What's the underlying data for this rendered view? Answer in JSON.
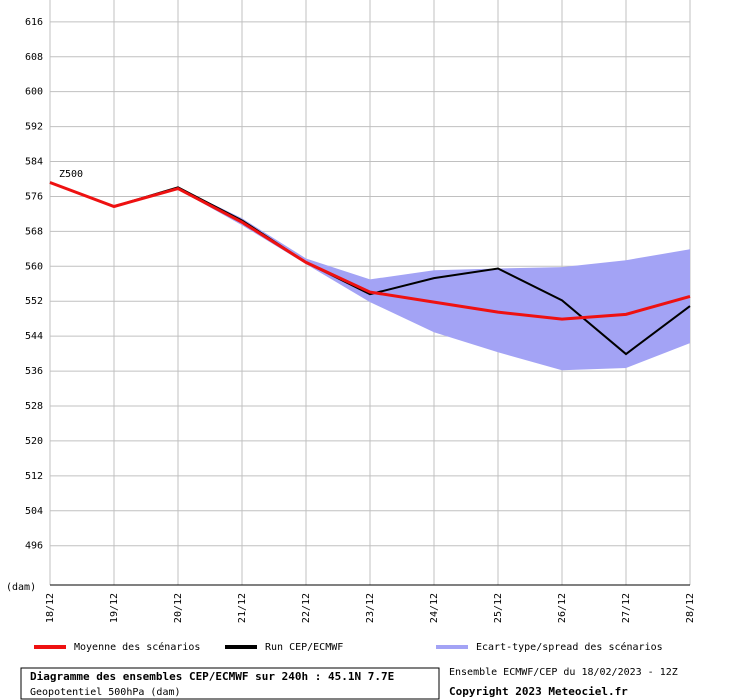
{
  "chart_data": {
    "type": "line",
    "annotation": "Z500",
    "y_unit_label": "(dam)",
    "categories": [
      "18/12",
      "19/12",
      "20/12",
      "21/12",
      "22/12",
      "23/12",
      "24/12",
      "25/12",
      "26/12",
      "27/12",
      "28/12"
    ],
    "ylim": [
      487,
      621
    ],
    "yticks": [
      496,
      504,
      512,
      520,
      528,
      536,
      544,
      552,
      560,
      568,
      576,
      584,
      592,
      600,
      608,
      616
    ],
    "grid": true,
    "series": [
      {
        "name": "Moyenne des scénarios",
        "color": "#ee1111",
        "values": [
          579.2,
          573.7,
          577.8,
          570.1,
          560.9,
          554.1,
          551.8,
          549.5,
          547.9,
          549.0,
          553.1
        ]
      },
      {
        "name": "Run CEP/ECMWF",
        "color": "#000000",
        "values": [
          579.2,
          573.7,
          578.1,
          570.5,
          560.9,
          553.6,
          557.3,
          559.5,
          552.2,
          539.9,
          550.9
        ]
      }
    ],
    "band": {
      "name": "Ecart-type/spread des scénarios",
      "color": "#a3a3f5",
      "upper": [
        579.2,
        573.7,
        578.1,
        571.0,
        561.8,
        557.0,
        559.1,
        559.5,
        559.8,
        561.4,
        563.9
      ],
      "lower": [
        579.2,
        573.7,
        577.6,
        569.4,
        560.5,
        551.8,
        544.9,
        540.3,
        536.2,
        536.7,
        542.4
      ]
    },
    "footer": {
      "title": "Diagramme des ensembles CEP/ECMWF sur 240h : 45.1N 7.7E",
      "subtitle": "Geopotentiel 500hPa (dam)",
      "run": "Ensemble ECMWF/CEP du 18/02/2023 - 12Z",
      "copyright": "Copyright 2023 Meteociel.fr"
    }
  }
}
